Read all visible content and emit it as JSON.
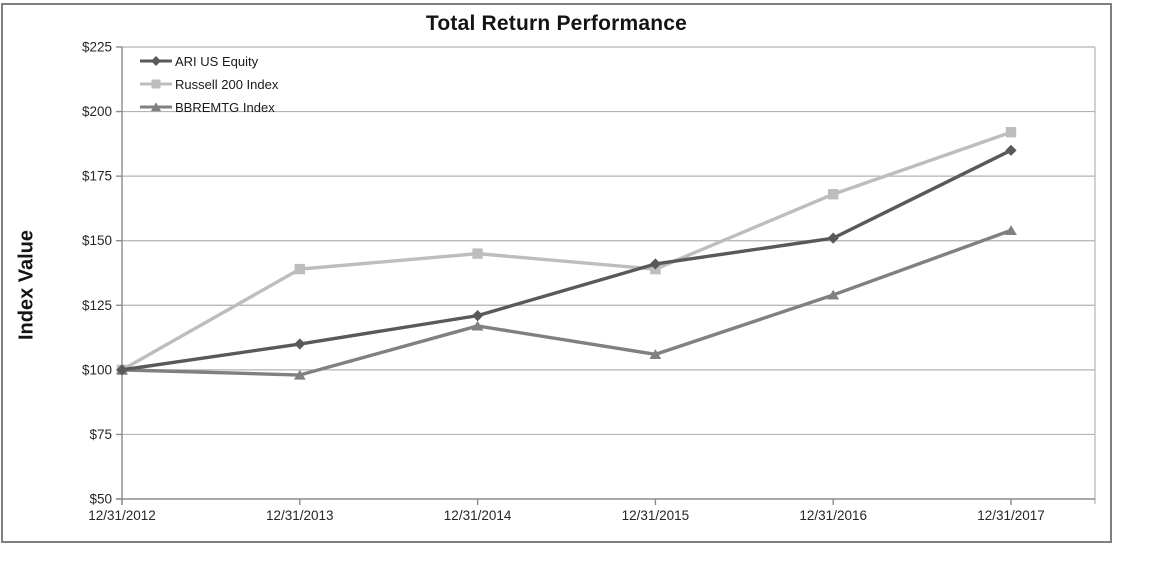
{
  "chart_data": {
    "type": "line",
    "title": "Total Return Performance",
    "ylabel": "Index Value",
    "xlabel": "",
    "x_categories": [
      "12/31/2012",
      "12/31/2013",
      "12/31/2014",
      "12/31/2015",
      "12/31/2016",
      "12/31/2017"
    ],
    "y_tick_values": [
      50,
      75,
      100,
      125,
      150,
      175,
      200,
      225
    ],
    "y_tick_labels": [
      "$50",
      "$75",
      "$100",
      "$125",
      "$150",
      "$175",
      "$200",
      "$225"
    ],
    "ylim": [
      50,
      225
    ],
    "grid": "horizontal",
    "legend_position": "top-left-inside",
    "series": [
      {
        "name": "ARI US Equity",
        "marker": "diamond",
        "color": "#595959",
        "values": [
          100,
          110,
          121,
          141,
          151,
          185
        ]
      },
      {
        "name": "Russell 200 Index",
        "marker": "square",
        "color": "#bdbdbd",
        "values": [
          100,
          139,
          145,
          139,
          168,
          192
        ]
      },
      {
        "name": "BBREMTG Index",
        "marker": "triangle",
        "color": "#808080",
        "values": [
          100,
          98,
          117,
          106,
          129,
          154
        ]
      }
    ],
    "colors": {
      "frame": "#7f7f7f",
      "grid": "#b3b3b3",
      "axis": "#8c8c8c",
      "text": "#262626",
      "title_text": "#141414"
    }
  }
}
